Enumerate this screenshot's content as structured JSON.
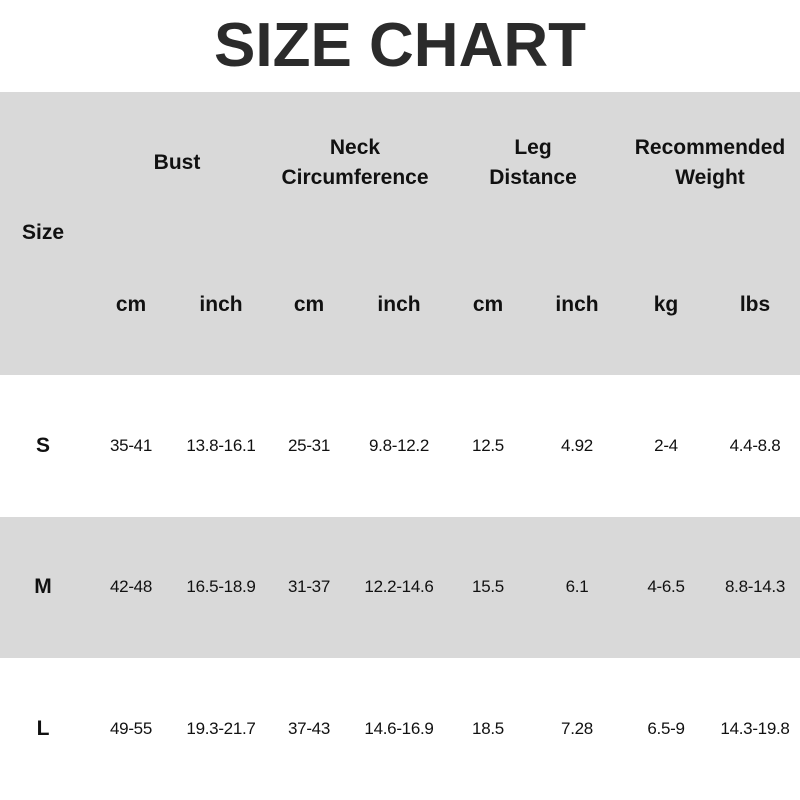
{
  "title": "SIZE CHART",
  "colors": {
    "header_band": "#d9d9d9",
    "stripe": "#d9d9d9",
    "title": "#2b2b2b"
  },
  "header": {
    "size_label": "Size",
    "groups": [
      {
        "label": "Bust",
        "units": [
          "cm",
          "inch"
        ]
      },
      {
        "label": "Neck Circumference",
        "units": [
          "cm",
          "inch"
        ]
      },
      {
        "label": "Leg Distance",
        "units": [
          "cm",
          "inch"
        ]
      },
      {
        "label": "Recommended Weight",
        "units": [
          "kg",
          "lbs"
        ]
      }
    ]
  },
  "rows": [
    {
      "size": "S",
      "values": [
        "35-41",
        "13.8-16.1",
        "25-31",
        "9.8-12.2",
        "12.5",
        "4.92",
        "2-4",
        "4.4-8.8"
      ]
    },
    {
      "size": "M",
      "values": [
        "42-48",
        "16.5-18.9",
        "31-37",
        "12.2-14.6",
        "15.5",
        "6.1",
        "4-6.5",
        "8.8-14.3"
      ]
    },
    {
      "size": "L",
      "values": [
        "49-55",
        "19.3-21.7",
        "37-43",
        "14.6-16.9",
        "18.5",
        "7.28",
        "6.5-9",
        "14.3-19.8"
      ]
    }
  ]
}
